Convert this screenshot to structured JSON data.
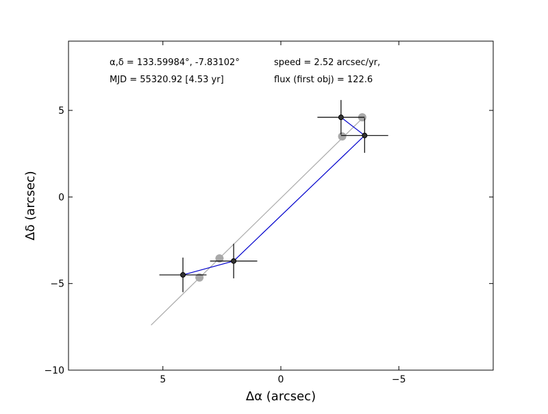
{
  "chart_data": {
    "type": "scatter",
    "title": "",
    "xlabel": "Δα (arcsec)",
    "ylabel": "Δδ (arcsec)",
    "xlim": [
      9,
      -9
    ],
    "ylim": [
      -10,
      9
    ],
    "x_inverted": true,
    "grid": false,
    "legend": "none",
    "xticks": [
      {
        "value": 5,
        "label": "5"
      },
      {
        "value": 0,
        "label": "0"
      },
      {
        "value": -5,
        "label": "−5"
      }
    ],
    "yticks": [
      {
        "value": 5,
        "label": "5"
      },
      {
        "value": 0,
        "label": "0"
      },
      {
        "value": -5,
        "label": "−5"
      },
      {
        "value": -10,
        "label": "−10"
      }
    ],
    "annotations": {
      "coords": "α,δ = 133.59984°, -7.83102°",
      "mjd": "MJD = 55320.92 [4.53 yr]",
      "speed": "speed = 2.52 arcsec/yr,",
      "flux": "flux (first obj) = 122.6"
    },
    "fit_line": {
      "color": "#aaaaaa",
      "x": [
        5.5,
        -3.5
      ],
      "y": [
        -7.4,
        4.6
      ]
    },
    "model_points": {
      "color": "#a9a9a9",
      "x": [
        3.45,
        2.6,
        -2.6,
        -3.45
      ],
      "y": [
        -4.65,
        -3.55,
        3.5,
        4.6
      ]
    },
    "observations": {
      "color": "#000000",
      "path_color": "#0000cc",
      "x": [
        4.15,
        2.0,
        -3.55,
        -2.55
      ],
      "y": [
        -4.5,
        -3.7,
        3.55,
        4.6
      ],
      "x_err": [
        1.0,
        1.0,
        1.0,
        1.0
      ],
      "y_err": [
        1.0,
        1.0,
        1.0,
        1.0
      ]
    }
  }
}
